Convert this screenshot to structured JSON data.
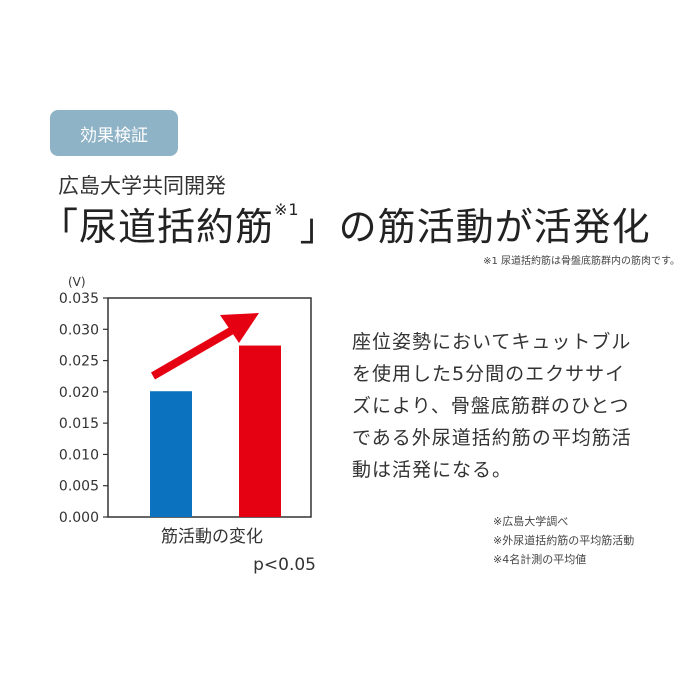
{
  "badge": "効果検証",
  "subtitle": "広島大学共同開発",
  "title": {
    "pre": "「尿道括約筋",
    "sup": "※1",
    "post": "」の筋活動が活発化"
  },
  "footnote1": "※1 尿道括約筋は骨盤底筋群内の筋肉です。",
  "body_lines": [
    "座位姿勢においてキュットブル",
    "を使用した5分間のエクササイ",
    "ズにより、骨盤底筋群のひとつ",
    "である外尿道括約筋の平均筋活",
    "動は活発になる。"
  ],
  "notes": [
    "※広島大学調べ",
    "※外尿道括約筋の平均筋活動",
    "※4名計測の平均値"
  ],
  "chart_data": {
    "type": "bar",
    "unit_label": "(V)",
    "xlabel": "筋活動の変化",
    "annotation": "p<0.05",
    "ylim": [
      0,
      0.035
    ],
    "yticks": [
      "0.000",
      "0.005",
      "0.010",
      "0.015",
      "0.020",
      "0.025",
      "0.030",
      "0.035"
    ],
    "values": [
      0.0201,
      0.0274
    ],
    "colors": [
      "#0a72bf",
      "#e50012"
    ],
    "arrow_color": "#e50012",
    "grid": false
  }
}
